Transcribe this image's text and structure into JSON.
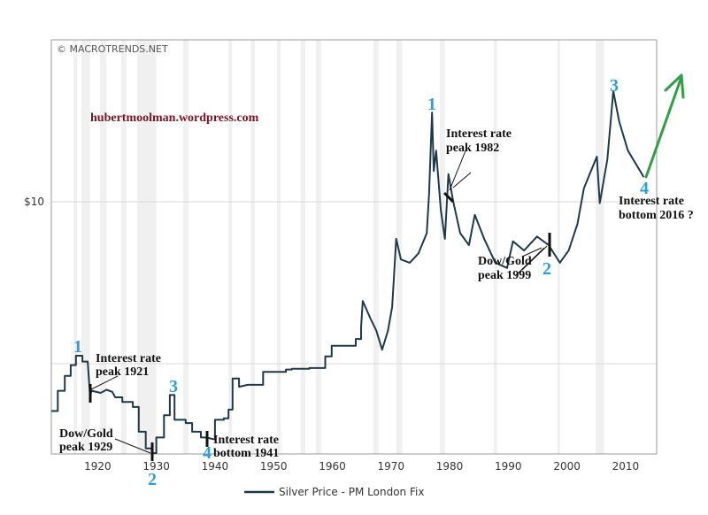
{
  "colors": {
    "line": "#1d3a4c",
    "wave_label": "#2a9fd6",
    "arrow": "#2ea043",
    "site": "#7a1424",
    "band": "#f0f0f0",
    "grid": "#d8d8d8"
  },
  "watermark": "© MACROTRENDS.NET",
  "site_label": "hubertmoolman.wordpress.com",
  "chart_data": {
    "type": "line",
    "title": "",
    "xlabel": "",
    "ylabel": "",
    "y_scale": "log",
    "xlim": [
      1912.1,
      2015.3
    ],
    "ylim": [
      0.277,
      100
    ],
    "x_ticks": [
      "1920",
      "1930",
      "1940",
      "1950",
      "1960",
      "1970",
      "1980",
      "1990",
      "2000",
      "2010"
    ],
    "y_ticks": [
      {
        "value": 10,
        "label": "$10"
      },
      {
        "value": 1,
        "label": ""
      }
    ],
    "grid": true,
    "legend_position": "bottom",
    "shaded_periods": [
      [
        1915.9,
        1916.5
      ],
      [
        1917.2,
        1918.7
      ],
      [
        1920.4,
        1921.5
      ],
      [
        1924.0,
        1924.9
      ],
      [
        1926.7,
        1930.0
      ],
      [
        1934.6,
        1935.5
      ],
      [
        1942.3,
        1942.9
      ],
      [
        1946.1,
        1946.8
      ],
      [
        1950.6,
        1951.2
      ],
      [
        1954.6,
        1955.4
      ],
      [
        1957.2,
        1958.1
      ],
      [
        1967.0,
        1967.9
      ],
      [
        1970.9,
        1971.9
      ],
      [
        1978.3,
        1979.2
      ],
      [
        1987.5,
        1988.1
      ],
      [
        1998.4,
        1998.8
      ],
      [
        2004.9,
        2006.3
      ]
    ],
    "series": [
      {
        "name": "Silver Price - PM London Fix",
        "points": [
          [
            1912.1,
            0.51
          ],
          [
            1913.2,
            0.51
          ],
          [
            1913.2,
            0.68
          ],
          [
            1914.4,
            0.68
          ],
          [
            1914.4,
            0.84
          ],
          [
            1915.4,
            0.84
          ],
          [
            1915.4,
            0.98
          ],
          [
            1916.3,
            0.98
          ],
          [
            1916.3,
            1.12
          ],
          [
            1917.4,
            1.12
          ],
          [
            1917.4,
            1.03
          ],
          [
            1918.3,
            1.03
          ],
          [
            1918.7,
            0.64
          ],
          [
            1919.0,
            0.68
          ],
          [
            1920.5,
            0.66
          ],
          [
            1921.5,
            0.69
          ],
          [
            1922.5,
            0.67
          ],
          [
            1923.0,
            0.62
          ],
          [
            1924.2,
            0.62
          ],
          [
            1924.2,
            0.58
          ],
          [
            1926.0,
            0.58
          ],
          [
            1926.0,
            0.54
          ],
          [
            1927.0,
            0.54
          ],
          [
            1927.0,
            0.38
          ],
          [
            1928.2,
            0.38
          ],
          [
            1928.2,
            0.3
          ],
          [
            1929.3,
            0.3
          ],
          [
            1929.3,
            0.28
          ],
          [
            1930.0,
            0.28
          ],
          [
            1930.0,
            0.35
          ],
          [
            1931.3,
            0.35
          ],
          [
            1931.3,
            0.48
          ],
          [
            1932.3,
            0.48
          ],
          [
            1932.3,
            0.64
          ],
          [
            1933.1,
            0.64
          ],
          [
            1933.1,
            0.45
          ],
          [
            1935.0,
            0.45
          ],
          [
            1935.0,
            0.43
          ],
          [
            1936.1,
            0.43
          ],
          [
            1936.1,
            0.38
          ],
          [
            1937.6,
            0.38
          ],
          [
            1937.6,
            0.35
          ],
          [
            1938.5,
            0.35
          ],
          [
            1940.0,
            0.34
          ],
          [
            1940.0,
            0.45
          ],
          [
            1941.5,
            0.45
          ],
          [
            1941.5,
            0.46
          ],
          [
            1942.3,
            0.46
          ],
          [
            1942.3,
            0.52
          ],
          [
            1943.0,
            0.52
          ],
          [
            1943.0,
            0.81
          ],
          [
            1944.1,
            0.81
          ],
          [
            1944.1,
            0.72
          ],
          [
            1945.6,
            0.74
          ],
          [
            1948.2,
            0.74
          ],
          [
            1948.2,
            0.89
          ],
          [
            1952.1,
            0.89
          ],
          [
            1952.1,
            0.92
          ],
          [
            1953.1,
            0.92
          ],
          [
            1953.1,
            0.93
          ],
          [
            1956.1,
            0.93
          ],
          [
            1956.1,
            0.94
          ],
          [
            1958.8,
            0.94
          ],
          [
            1958.8,
            1.11
          ],
          [
            1959.9,
            1.11
          ],
          [
            1959.9,
            1.29
          ],
          [
            1964.0,
            1.29
          ],
          [
            1964.0,
            1.42
          ],
          [
            1964.9,
            1.42
          ],
          [
            1964.9,
            1.68
          ],
          [
            1965.2,
            2.44
          ],
          [
            1966.5,
            1.9
          ],
          [
            1967.5,
            1.6
          ],
          [
            1968.5,
            1.22
          ],
          [
            1969.5,
            1.6
          ],
          [
            1970.2,
            2.24
          ],
          [
            1970.9,
            5.9
          ],
          [
            1971.7,
            4.4
          ],
          [
            1973.2,
            4.2
          ],
          [
            1974.7,
            4.8
          ],
          [
            1976.1,
            6.4
          ],
          [
            1976.5,
            11.1
          ],
          [
            1977.0,
            35.6
          ],
          [
            1977.3,
            15.5
          ],
          [
            1977.7,
            20.7
          ],
          [
            1978.5,
            8.9
          ],
          [
            1979.2,
            5.9
          ],
          [
            1979.8,
            14.8
          ],
          [
            1980.6,
            10.1
          ],
          [
            1981.8,
            6.4
          ],
          [
            1983.3,
            5.4
          ],
          [
            1984.3,
            8.3
          ],
          [
            1985.9,
            5.9
          ],
          [
            1987.8,
            4.2
          ],
          [
            1989.8,
            3.9
          ],
          [
            1990.8,
            5.7
          ],
          [
            1992.7,
            5.0
          ],
          [
            1994.9,
            6.1
          ],
          [
            1996.9,
            5.4
          ],
          [
            1998.8,
            4.2
          ],
          [
            2000.3,
            5.0
          ],
          [
            2001.8,
            7.3
          ],
          [
            2002.9,
            12.1
          ],
          [
            2005.1,
            19.0
          ],
          [
            2005.6,
            9.8
          ],
          [
            2006.9,
            18.3
          ],
          [
            2007.9,
            48.2
          ],
          [
            2008.9,
            31.4
          ],
          [
            2010.4,
            20.7
          ],
          [
            2013.1,
            14.2
          ]
        ]
      }
    ],
    "annotations": {
      "wave_1921_top": "1",
      "rate_peak_1921": [
        "Interest rate",
        "peak 1921"
      ],
      "wave_3_1933": "3",
      "dowgold_1929": [
        "Dow/Gold",
        "peak 1929"
      ],
      "wave_2_1930": "2",
      "wave_4_1941": "4",
      "rate_bottom_1941": [
        "Interest rate",
        "bottom 1941"
      ],
      "wave_1_1980": "1",
      "rate_peak_1982": [
        "Interest rate",
        "peak 1982"
      ],
      "dowgold_1999": [
        "Dow/Gold",
        "peak 1999"
      ],
      "wave_2_1999": "2",
      "wave_3_2011": "3",
      "wave_4_2016": "4",
      "rate_bottom_2016": [
        "Interest rate",
        "bottom 2016 ?"
      ]
    }
  }
}
